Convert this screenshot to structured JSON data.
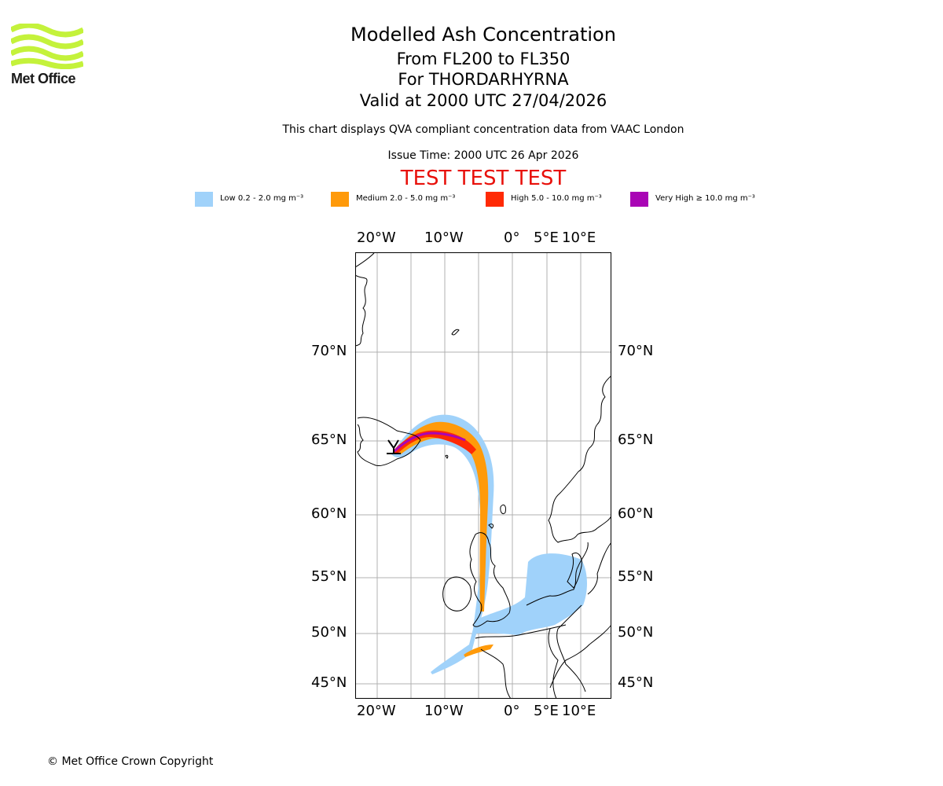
{
  "branding": {
    "logo_text": "Met Office",
    "logo_color": "#c4f23b"
  },
  "header": {
    "title": "Modelled Ash Concentration",
    "levels": "From FL200 to FL350",
    "volcano": "For THORDARHYRNA",
    "valid": "Valid at 2000 UTC 27/04/2026",
    "description": "This chart displays QVA compliant concentration data from VAAC London",
    "issue_time": "Issue Time: 2000 UTC 26 Apr 2026",
    "test_banner": "TEST TEST TEST",
    "test_color": "#e8100a"
  },
  "legend": [
    {
      "label": "Low 0.2 - 2.0 mg m⁻³",
      "color": "#a0d2fa"
    },
    {
      "label": "Medium 2.0 - 5.0 mg m⁻³",
      "color": "#ff9a0a"
    },
    {
      "label": "High 5.0 - 10.0 mg m⁻³",
      "color": "#ff2a05"
    },
    {
      "label": "Very High ≥ 10.0 mg m⁻³",
      "color": "#a905b5"
    }
  ],
  "map": {
    "longitude_labels": [
      "20°W",
      "10°W",
      "0°",
      "5°E",
      "10°E"
    ],
    "latitude_labels": [
      "70°N",
      "65°N",
      "60°N",
      "55°N",
      "50°N",
      "45°N"
    ]
  },
  "footer": {
    "copyright": "© Met Office Crown Copyright"
  }
}
